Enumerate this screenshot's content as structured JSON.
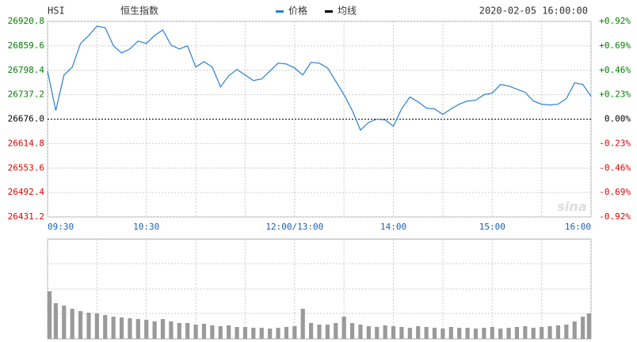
{
  "chart_data": {
    "type": "line",
    "symbol": "HSI",
    "title": "恒生指数",
    "timestamp": "2020-02-05 16:00:00",
    "watermark": "sina",
    "x": [
      "09:30",
      "09:35",
      "09:40",
      "09:45",
      "09:50",
      "09:55",
      "10:00",
      "10:05",
      "10:10",
      "10:15",
      "10:20",
      "10:25",
      "10:30",
      "10:35",
      "10:40",
      "10:45",
      "10:50",
      "10:55",
      "11:00",
      "11:05",
      "11:10",
      "11:15",
      "11:20",
      "11:25",
      "11:30",
      "11:35",
      "11:40",
      "11:45",
      "11:50",
      "11:55",
      "12:00",
      "13:05",
      "13:10",
      "13:15",
      "13:20",
      "13:25",
      "13:30",
      "13:35",
      "13:40",
      "13:45",
      "13:50",
      "13:55",
      "14:00",
      "14:05",
      "14:10",
      "14:15",
      "14:20",
      "14:25",
      "14:30",
      "14:35",
      "14:40",
      "14:45",
      "14:50",
      "14:55",
      "15:00",
      "15:05",
      "15:10",
      "15:15",
      "15:20",
      "15:25",
      "15:30",
      "15:35",
      "15:40",
      "15:45",
      "15:50",
      "15:55",
      "16:00"
    ],
    "series": [
      {
        "name": "价格",
        "color": "#2b7fd0",
        "values": [
          26796.4,
          26697.7,
          26786.6,
          26806.3,
          26865.5,
          26885.3,
          26909.0,
          26905.0,
          26859.6,
          26841.8,
          26851.7,
          26871.4,
          26865.5,
          26885.3,
          26899.1,
          26861.6,
          26851.7,
          26859.6,
          26806.3,
          26820.1,
          26806.3,
          26756.9,
          26784.6,
          26800.4,
          26786.6,
          26772.7,
          26776.7,
          26796.4,
          26816.2,
          26814.2,
          26804.3,
          26786.6,
          26818.2,
          26816.2,
          26804.3,
          26770.8,
          26737.2,
          26697.7,
          26648.4,
          26668.1,
          26676.0,
          26674.0,
          26658.2,
          26701.7,
          26731.3,
          26719.4,
          26703.6,
          26701.7,
          26687.9,
          26701.7,
          26713.5,
          26721.4,
          26723.4,
          26737.2,
          26741.1,
          26762.9,
          26758.9,
          26751.0,
          26743.1,
          26721.4,
          26713.5,
          26711.5,
          26713.5,
          26727.3,
          26766.8,
          26762.9,
          26733.3
        ]
      },
      {
        "name": "均线",
        "color": "#000000",
        "values": [
          null,
          null,
          null,
          null,
          null,
          null,
          null,
          null,
          null,
          null,
          null,
          null,
          null,
          null,
          null,
          null,
          null,
          null,
          null,
          null,
          null,
          null,
          null,
          null,
          null,
          null,
          null,
          null,
          null,
          null,
          null,
          null,
          null,
          null,
          null,
          null,
          null,
          null,
          null,
          null,
          null,
          null,
          null,
          null,
          null,
          null,
          null,
          null,
          null,
          null,
          null,
          null,
          null,
          null,
          null,
          null,
          null,
          null,
          null,
          null,
          null,
          null,
          null,
          null,
          null,
          null,
          null
        ]
      }
    ],
    "reference_value": 26676,
    "ylim": [
      26431.2,
      26920.8
    ],
    "yticks": [
      {
        "value": 26920.8,
        "label": "26920.8"
      },
      {
        "value": 26859.6,
        "label": "26859.6"
      },
      {
        "value": 26798.4,
        "label": "26798.4"
      },
      {
        "value": 26737.2,
        "label": "26737.2"
      },
      {
        "value": 26676,
        "label": "26676.0"
      },
      {
        "value": 26614.8,
        "label": "26614.8"
      },
      {
        "value": 26553.6,
        "label": "26553.6"
      },
      {
        "value": 26492.4,
        "label": "26492.4"
      },
      {
        "value": 26431.2,
        "label": "26431.2"
      }
    ],
    "y2lim": [
      -0.92,
      0.92
    ],
    "y2ticks": [
      {
        "value": 0.92,
        "label": "+0.92%"
      },
      {
        "value": 0.69,
        "label": "+0.69%"
      },
      {
        "value": 0.46,
        "label": "+0.46%"
      },
      {
        "value": 0.23,
        "label": "+0.23%"
      },
      {
        "value": 0,
        "label": "0.00%"
      },
      {
        "value": -0.23,
        "label": "-0.23%"
      },
      {
        "value": -0.46,
        "label": "-0.46%"
      },
      {
        "value": -0.69,
        "label": "-0.69%"
      },
      {
        "value": -0.92,
        "label": "-0.92%"
      }
    ],
    "xticks": [
      "09:30",
      "10:30",
      {
        "value": "12:00",
        "label": "12:00/13:00"
      },
      "14:00",
      "15:00",
      "16:00"
    ],
    "up_color": "#008000",
    "down_color": "#e00000",
    "grid": true,
    "volume": {
      "color": "#9a9a9a",
      "values": [
        60,
        45,
        42,
        38,
        35,
        33,
        32,
        30,
        28,
        27,
        26,
        25,
        24,
        22,
        25,
        22,
        20,
        20,
        18,
        19,
        17,
        16,
        17,
        15,
        15,
        14,
        14,
        13,
        14,
        15,
        16,
        38,
        20,
        18,
        18,
        20,
        28,
        20,
        18,
        16,
        15,
        17,
        16,
        15,
        14,
        16,
        15,
        14,
        13,
        15,
        14,
        14,
        13,
        14,
        15,
        13,
        14,
        15,
        16,
        14,
        15,
        16,
        17,
        18,
        22,
        28,
        32
      ]
    }
  }
}
